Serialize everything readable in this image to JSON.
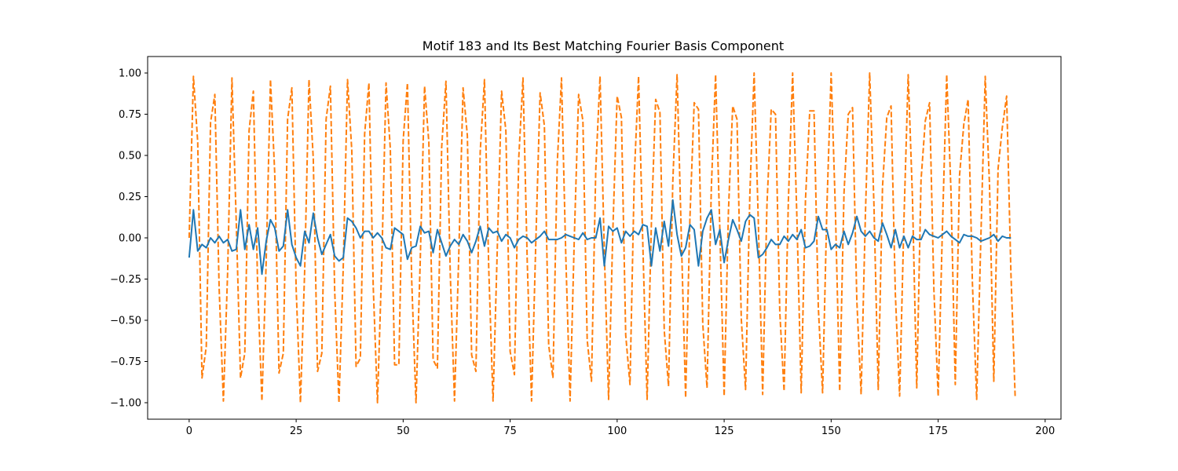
{
  "chart_data": {
    "type": "line",
    "title": "Motif 183 and Its Best Matching Fourier Basis Component",
    "xlabel": "",
    "ylabel": "",
    "xlim": [
      -9.7,
      203.7
    ],
    "ylim": [
      -1.1,
      1.1
    ],
    "xticks": [
      0,
      25,
      50,
      75,
      100,
      125,
      150,
      175,
      200
    ],
    "yticks": [
      -1.0,
      -0.75,
      -0.5,
      -0.25,
      0.0,
      0.25,
      0.5,
      0.75,
      1.0
    ],
    "xtick_labels": [
      "0",
      "25",
      "50",
      "75",
      "100",
      "125",
      "150",
      "175",
      "200"
    ],
    "ytick_labels": [
      "−1.00",
      "−0.75",
      "−0.50",
      "−0.25",
      "0.00",
      "0.25",
      "0.50",
      "0.75",
      "1.00"
    ],
    "grid": false,
    "legend": "none",
    "series": [
      {
        "color": "#1f77b4",
        "style": "solid",
        "values": [
          -0.12,
          0.17,
          -0.08,
          -0.04,
          -0.06,
          0.0,
          -0.03,
          0.01,
          -0.03,
          -0.01,
          -0.08,
          -0.07,
          0.17,
          -0.07,
          0.08,
          -0.07,
          0.06,
          -0.22,
          -0.02,
          0.11,
          0.06,
          -0.08,
          -0.05,
          0.17,
          -0.04,
          -0.12,
          -0.17,
          0.04,
          -0.03,
          0.15,
          0.0,
          -0.1,
          -0.04,
          0.02,
          -0.11,
          -0.14,
          -0.12,
          0.12,
          0.1,
          0.06,
          0.0,
          0.04,
          0.04,
          0.0,
          0.03,
          0.0,
          -0.06,
          -0.07,
          0.06,
          0.04,
          0.02,
          -0.13,
          -0.06,
          -0.05,
          0.07,
          0.03,
          0.04,
          -0.09,
          0.05,
          -0.03,
          -0.11,
          -0.05,
          -0.01,
          -0.04,
          0.02,
          -0.02,
          -0.09,
          -0.02,
          0.07,
          -0.05,
          0.06,
          0.03,
          0.04,
          -0.02,
          0.02,
          0.0,
          -0.06,
          -0.01,
          0.01,
          0.0,
          -0.03,
          -0.01,
          0.01,
          0.04,
          -0.01,
          -0.01,
          -0.01,
          0.0,
          0.02,
          0.01,
          0.0,
          -0.01,
          0.03,
          -0.01,
          0.0,
          0.0,
          0.12,
          -0.17,
          0.07,
          0.04,
          0.06,
          -0.03,
          0.04,
          0.01,
          0.04,
          0.02,
          0.08,
          0.07,
          -0.17,
          0.06,
          -0.08,
          0.1,
          -0.05,
          0.23,
          0.02,
          -0.11,
          -0.06,
          0.08,
          0.05,
          -0.17,
          0.04,
          0.12,
          0.17,
          -0.04,
          0.05,
          -0.15,
          -0.01,
          0.11,
          0.05,
          -0.02,
          0.1,
          0.14,
          0.12,
          -0.12,
          -0.1,
          -0.06,
          -0.01,
          -0.04,
          -0.04,
          0.01,
          -0.02,
          0.02,
          -0.01,
          0.05,
          -0.06,
          -0.05,
          -0.02,
          0.13,
          0.05,
          0.05,
          -0.07,
          -0.04,
          -0.06,
          0.04,
          -0.04,
          0.03,
          0.13,
          0.04,
          0.01,
          0.04,
          0.0,
          -0.02,
          0.09,
          0.02,
          -0.06,
          0.05,
          -0.06,
          0.01,
          -0.06,
          0.01,
          -0.01,
          -0.01,
          0.05,
          0.02,
          0.01,
          0.0,
          0.02,
          0.04,
          0.01,
          -0.01,
          -0.03,
          0.02,
          0.01,
          0.01,
          0.0,
          -0.02,
          -0.01,
          0.0,
          0.02,
          -0.02,
          0.01,
          0.0,
          0.0
        ]
      },
      {
        "color": "#ff7f0e",
        "style": "dashed",
        "values": [
          0.0,
          0.98,
          0.58,
          -0.85,
          -0.66,
          0.7,
          0.87,
          -0.3,
          -0.99,
          -0.2,
          0.97,
          0.1,
          -0.85,
          -0.7,
          0.65,
          0.89,
          -0.29,
          -0.99,
          -0.14,
          0.96,
          0.39,
          -0.82,
          -0.7,
          0.72,
          0.91,
          -0.31,
          -1.0,
          -0.19,
          0.96,
          0.48,
          -0.81,
          -0.7,
          0.72,
          0.92,
          -0.32,
          -1.0,
          -0.18,
          0.96,
          0.53,
          -0.78,
          -0.73,
          0.63,
          0.94,
          -0.29,
          -1.0,
          -0.16,
          0.94,
          0.54,
          -0.77,
          -0.77,
          0.59,
          0.94,
          -0.26,
          -1.0,
          -0.13,
          0.92,
          0.58,
          -0.74,
          -0.79,
          0.55,
          0.95,
          -0.21,
          -0.99,
          -0.1,
          0.91,
          0.62,
          -0.71,
          -0.81,
          0.52,
          0.96,
          -0.19,
          -0.99,
          -0.06,
          0.89,
          0.65,
          -0.69,
          -0.83,
          0.48,
          0.97,
          -0.15,
          -0.99,
          -0.02,
          0.88,
          0.68,
          -0.65,
          -0.85,
          0.45,
          0.97,
          -0.11,
          -0.99,
          0.01,
          0.87,
          0.71,
          -0.62,
          -0.87,
          0.41,
          0.98,
          -0.08,
          -0.98,
          0.05,
          0.86,
          0.73,
          -0.59,
          -0.89,
          0.37,
          0.98,
          -0.04,
          -0.98,
          0.09,
          0.84,
          0.76,
          -0.56,
          -0.9,
          0.34,
          0.99,
          0.0,
          -0.97,
          0.12,
          0.82,
          0.78,
          -0.52,
          -0.91,
          0.3,
          0.99,
          0.04,
          -0.96,
          0.16,
          0.8,
          0.72,
          -0.49,
          -0.92,
          0.26,
          1.0,
          0.08,
          -0.95,
          0.2,
          0.78,
          0.75,
          -0.45,
          -0.93,
          0.22,
          1.0,
          0.12,
          -0.94,
          0.23,
          0.77,
          0.77,
          -0.42,
          -0.94,
          0.18,
          1.0,
          0.16,
          -0.93,
          0.27,
          0.75,
          0.79,
          -0.38,
          -0.95,
          0.14,
          1.0,
          0.2,
          -0.92,
          0.31,
          0.73,
          0.8,
          -0.34,
          -0.96,
          0.1,
          0.99,
          0.24,
          -0.91,
          0.35,
          0.71,
          0.82,
          -0.31,
          -0.96,
          0.06,
          0.99,
          0.28,
          -0.89,
          0.38,
          0.69,
          0.84,
          -0.27,
          -0.98,
          0.02,
          0.98,
          0.32,
          -0.87,
          0.42,
          0.67,
          0.86,
          -0.21,
          -0.97
        ]
      }
    ]
  }
}
